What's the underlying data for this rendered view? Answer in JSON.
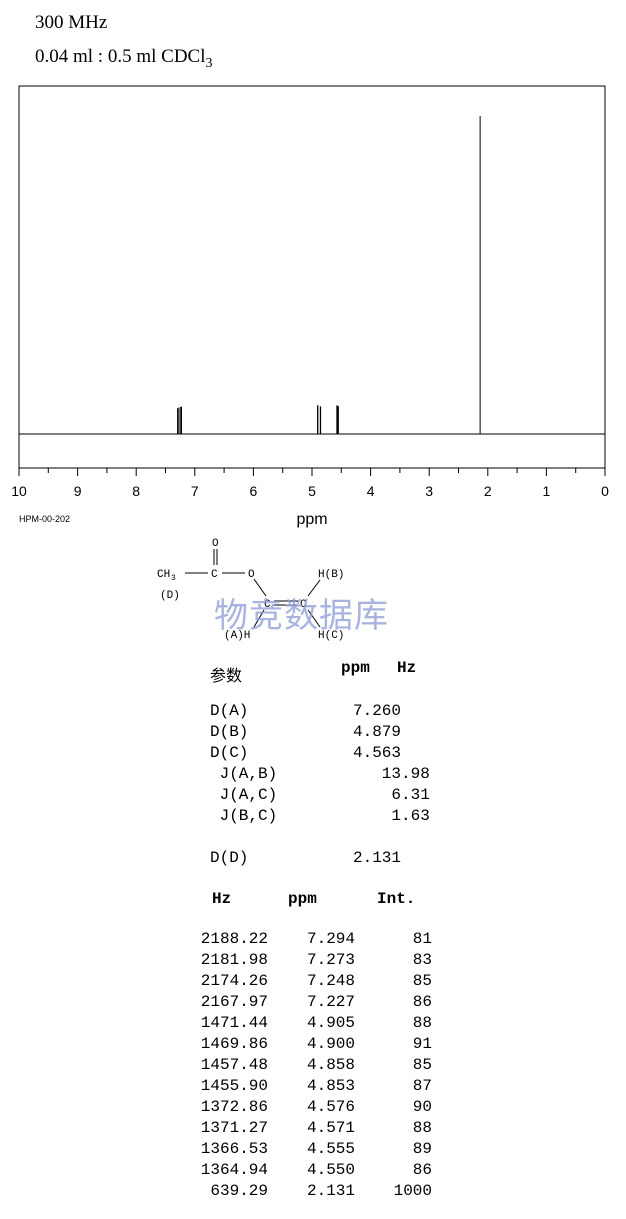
{
  "header": {
    "frequency": "300 MHz",
    "sample_main": "0.04 ml : 0.5 ml CDCl",
    "sample_sub": "3"
  },
  "chart_data": {
    "type": "line",
    "xlabel": "ppm",
    "xlim": [
      10,
      0
    ],
    "x_ticks": [
      "10",
      "9",
      "8",
      "7",
      "6",
      "5",
      "4",
      "3",
      "2",
      "1",
      "0"
    ],
    "spectrum_id": "HPM-00-202",
    "peaks": [
      {
        "ppm": 7.294,
        "intensity": 81
      },
      {
        "ppm": 7.273,
        "intensity": 83
      },
      {
        "ppm": 7.248,
        "intensity": 85
      },
      {
        "ppm": 7.227,
        "intensity": 86
      },
      {
        "ppm": 4.905,
        "intensity": 88
      },
      {
        "ppm": 4.9,
        "intensity": 91
      },
      {
        "ppm": 4.858,
        "intensity": 85
      },
      {
        "ppm": 4.853,
        "intensity": 87
      },
      {
        "ppm": 4.576,
        "intensity": 90
      },
      {
        "ppm": 4.571,
        "intensity": 88
      },
      {
        "ppm": 4.555,
        "intensity": 89
      },
      {
        "ppm": 4.55,
        "intensity": 86
      },
      {
        "ppm": 2.131,
        "intensity": 1000
      }
    ]
  },
  "structure": {
    "ch3": "CH",
    "ch3_sub": "3",
    "d_label": "(D)",
    "o_top": "O",
    "c_carbonyl": "C",
    "o_ester": "O",
    "c_a": "C",
    "c_b": "C",
    "hb": "H(B)",
    "ha": "(A)H",
    "hc": "H(C)"
  },
  "watermark": "物竞数据库",
  "params": {
    "label": "参数",
    "col_ppm": "ppm",
    "col_hz": "Hz",
    "rows": [
      {
        "name": "D(A)",
        "value": "7.260"
      },
      {
        "name": "D(B)",
        "value": "4.879"
      },
      {
        "name": "D(C)",
        "value": "4.563"
      },
      {
        "name": " J(A,B)",
        "value": "   13.98"
      },
      {
        "name": " J(A,C)",
        "value": "    6.31"
      },
      {
        "name": " J(B,C)",
        "value": "    1.63"
      },
      {
        "name": "D(D)",
        "value": "2.131"
      }
    ]
  },
  "peak_table": {
    "headers": {
      "hz": "Hz",
      "ppm": "ppm",
      "int": "Int."
    },
    "rows": [
      {
        "hz": "2188.22",
        "ppm": "7.294",
        "int": "81"
      },
      {
        "hz": "2181.98",
        "ppm": "7.273",
        "int": "83"
      },
      {
        "hz": "2174.26",
        "ppm": "7.248",
        "int": "85"
      },
      {
        "hz": "2167.97",
        "ppm": "7.227",
        "int": "86"
      },
      {
        "hz": "1471.44",
        "ppm": "4.905",
        "int": "88"
      },
      {
        "hz": "1469.86",
        "ppm": "4.900",
        "int": "91"
      },
      {
        "hz": "1457.48",
        "ppm": "4.858",
        "int": "85"
      },
      {
        "hz": "1455.90",
        "ppm": "4.853",
        "int": "87"
      },
      {
        "hz": "1372.86",
        "ppm": "4.576",
        "int": "90"
      },
      {
        "hz": "1371.27",
        "ppm": "4.571",
        "int": "88"
      },
      {
        "hz": "1366.53",
        "ppm": "4.555",
        "int": "89"
      },
      {
        "hz": "1364.94",
        "ppm": "4.550",
        "int": "86"
      },
      {
        "hz": "639.29",
        "ppm": "2.131",
        "int": "1000"
      }
    ]
  }
}
